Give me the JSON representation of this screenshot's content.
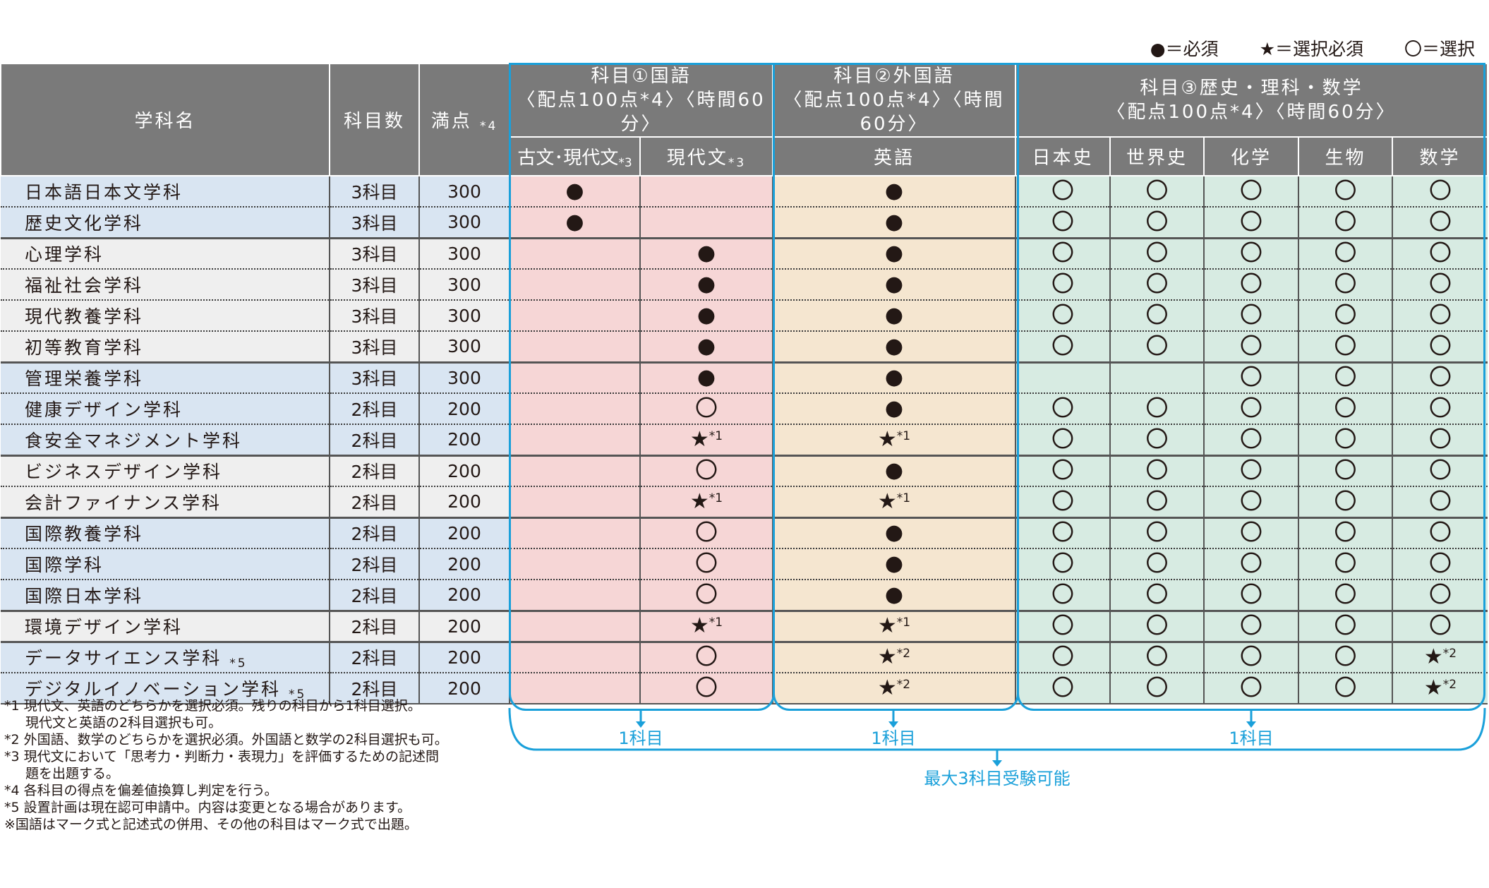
{
  "legend": {
    "required": "●＝必須",
    "select_required": "★＝選択必須",
    "select": "〇＝選択"
  },
  "header": {
    "dept": "学科名",
    "count": "科目数",
    "full_label": "満点",
    "full_note": "*4",
    "group1_line1": "科目①国語",
    "group1_line2": "〈配点100点*4〉〈時間60分〉",
    "group2_line1": "科目②外国語",
    "group2_line2": "〈配点100点*4〉〈時間60分〉",
    "group3_line1": "科目③歴史・理科・数学",
    "group3_line2": "〈配点100点*4〉〈時間60分〉",
    "col_kobun": "古文･現代文",
    "col_kobun_note": "*3",
    "col_gendai": "現代文",
    "col_gendai_note": "*3",
    "col_eigo": "英語",
    "col_nihonshi": "日本史",
    "col_sekaishi": "世界史",
    "col_kagaku": "化学",
    "col_seibutsu": "生物",
    "col_sugaku": "数学"
  },
  "rows": [
    {
      "name": "日本語日本文学科",
      "count": "3科目",
      "full": "300",
      "c1": "●",
      "c2": "",
      "c3": "●",
      "c4": "〇",
      "c5": "〇",
      "c6": "〇",
      "c7": "〇",
      "c8": "〇"
    },
    {
      "name": "歴史文化学科",
      "count": "3科目",
      "full": "300",
      "c1": "●",
      "c2": "",
      "c3": "●",
      "c4": "〇",
      "c5": "〇",
      "c6": "〇",
      "c7": "〇",
      "c8": "〇"
    },
    {
      "name": "心理学科",
      "count": "3科目",
      "full": "300",
      "c1": "",
      "c2": "●",
      "c3": "●",
      "c4": "〇",
      "c5": "〇",
      "c6": "〇",
      "c7": "〇",
      "c8": "〇"
    },
    {
      "name": "福祉社会学科",
      "count": "3科目",
      "full": "300",
      "c1": "",
      "c2": "●",
      "c3": "●",
      "c4": "〇",
      "c5": "〇",
      "c6": "〇",
      "c7": "〇",
      "c8": "〇"
    },
    {
      "name": "現代教養学科",
      "count": "3科目",
      "full": "300",
      "c1": "",
      "c2": "●",
      "c3": "●",
      "c4": "〇",
      "c5": "〇",
      "c6": "〇",
      "c7": "〇",
      "c8": "〇"
    },
    {
      "name": "初等教育学科",
      "count": "3科目",
      "full": "300",
      "c1": "",
      "c2": "●",
      "c3": "●",
      "c4": "〇",
      "c5": "〇",
      "c6": "〇",
      "c7": "〇",
      "c8": "〇"
    },
    {
      "name": "管理栄養学科",
      "count": "3科目",
      "full": "300",
      "c1": "",
      "c2": "●",
      "c3": "●",
      "c4": "",
      "c5": "",
      "c6": "〇",
      "c7": "〇",
      "c8": "〇"
    },
    {
      "name": "健康デザイン学科",
      "count": "2科目",
      "full": "200",
      "c1": "",
      "c2": "〇",
      "c3": "●",
      "c4": "〇",
      "c5": "〇",
      "c6": "〇",
      "c7": "〇",
      "c8": "〇"
    },
    {
      "name": "食安全マネジメント学科",
      "count": "2科目",
      "full": "200",
      "c1": "",
      "c2": "★",
      "c2n": "*1",
      "c3": "★",
      "c3n": "*1",
      "c4": "〇",
      "c5": "〇",
      "c6": "〇",
      "c7": "〇",
      "c8": "〇"
    },
    {
      "name": "ビジネスデザイン学科",
      "count": "2科目",
      "full": "200",
      "c1": "",
      "c2": "〇",
      "c3": "●",
      "c4": "〇",
      "c5": "〇",
      "c6": "〇",
      "c7": "〇",
      "c8": "〇"
    },
    {
      "name": "会計ファイナンス学科",
      "count": "2科目",
      "full": "200",
      "c1": "",
      "c2": "★",
      "c2n": "*1",
      "c3": "★",
      "c3n": "*1",
      "c4": "〇",
      "c5": "〇",
      "c6": "〇",
      "c7": "〇",
      "c8": "〇"
    },
    {
      "name": "国際教養学科",
      "count": "2科目",
      "full": "200",
      "c1": "",
      "c2": "〇",
      "c3": "●",
      "c4": "〇",
      "c5": "〇",
      "c6": "〇",
      "c7": "〇",
      "c8": "〇"
    },
    {
      "name": "国際学科",
      "count": "2科目",
      "full": "200",
      "c1": "",
      "c2": "〇",
      "c3": "●",
      "c4": "〇",
      "c5": "〇",
      "c6": "〇",
      "c7": "〇",
      "c8": "〇"
    },
    {
      "name": "国際日本学科",
      "count": "2科目",
      "full": "200",
      "c1": "",
      "c2": "〇",
      "c3": "●",
      "c4": "〇",
      "c5": "〇",
      "c6": "〇",
      "c7": "〇",
      "c8": "〇"
    },
    {
      "name": "環境デザイン学科",
      "count": "2科目",
      "full": "200",
      "c1": "",
      "c2": "★",
      "c2n": "*1",
      "c3": "★",
      "c3n": "*1",
      "c4": "〇",
      "c5": "〇",
      "c6": "〇",
      "c7": "〇",
      "c8": "〇"
    },
    {
      "name": "データサイエンス学科",
      "name_note": "*5",
      "count": "2科目",
      "full": "200",
      "c1": "",
      "c2": "〇",
      "c3": "★",
      "c3n": "*2",
      "c4": "〇",
      "c5": "〇",
      "c6": "〇",
      "c7": "〇",
      "c8": "★",
      "c8n": "*2"
    },
    {
      "name": "デジタルイノベーション学科",
      "name_note": "*5",
      "count": "2科目",
      "full": "200",
      "c1": "",
      "c2": "〇",
      "c3": "★",
      "c3n": "*2",
      "c4": "〇",
      "c5": "〇",
      "c6": "〇",
      "c7": "〇",
      "c8": "★",
      "c8n": "*2"
    }
  ],
  "brackets": {
    "g1": "1科目",
    "g2": "1科目",
    "g3": "1科目",
    "total": "最大3科目受験可能"
  },
  "notes": [
    "*1 現代文、英語のどちらかを選択必須。残りの科目から1科目選択。",
    "現代文と英語の2科目選択も可。",
    "*2 外国語、数学のどちらかを選択必須。外国語と数学の2科目選択も可。",
    "*3 現代文において「思考力・判断力・表現力」を評価するための記述問",
    "題を出題する。",
    "*4 各科目の得点を偏差値換算し判定を行う。",
    "*5 設置計画は現在認可申請中。内容は変更となる場合があります。",
    "※国語はマーク式と記述式の併用、その他の科目はマーク式で出題。"
  ],
  "colors": {
    "accent": "#1aa0da",
    "header": "#7a7a7a",
    "blue": "#d9e5f2",
    "grey": "#efefef",
    "red": "#f6d6d6",
    "tan": "#f5e6d0",
    "green": "#d7ebe2"
  }
}
